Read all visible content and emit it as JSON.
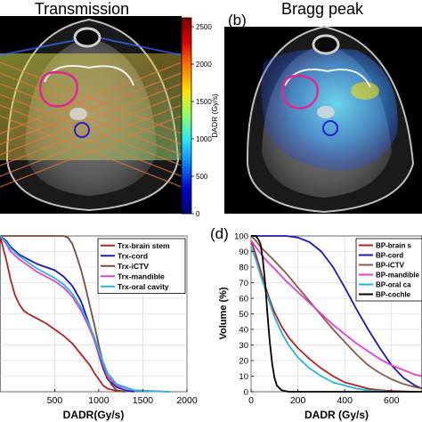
{
  "panels": {
    "a": {
      "title": "Transmission"
    },
    "b": {
      "title": "Bragg peak",
      "letter": "(b)"
    },
    "c": {},
    "d": {
      "letter": "(d)"
    }
  },
  "colorbar": {
    "label": "DADR (Gy/s)",
    "ticks": [
      "2500",
      "2000",
      "1500",
      "1000",
      "500",
      "0"
    ],
    "colors": [
      "#7a0000",
      "#e00000",
      "#ff7a00",
      "#ffe100",
      "#8cff6a",
      "#28e6ff",
      "#0a7cff",
      "#0000c8",
      "#00007a"
    ]
  },
  "chart_data": [
    {
      "type": "line",
      "panel": "c",
      "xlabel": "DADR(Gy/s)",
      "ylabel": "",
      "xlim": [
        -120,
        2000
      ],
      "ylim": [
        0,
        100
      ],
      "xticks": [
        500,
        1000,
        1500,
        2000
      ],
      "xtick_labels": [
        "500",
        "1000",
        "1500",
        "2000"
      ],
      "grid": true,
      "legend": "top-right",
      "series": [
        {
          "name": "Trx-brain stem",
          "color": "#b22222",
          "points": [
            [
              -120,
              100
            ],
            [
              -50,
              85
            ],
            [
              0,
              72
            ],
            [
              50,
              62
            ],
            [
              100,
              56
            ],
            [
              150,
              52
            ],
            [
              200,
              50
            ],
            [
              300,
              47
            ],
            [
              400,
              44
            ],
            [
              500,
              40
            ],
            [
              600,
              36
            ],
            [
              700,
              31
            ],
            [
              800,
              24
            ],
            [
              900,
              17
            ],
            [
              950,
              12
            ],
            [
              1000,
              8
            ],
            [
              1050,
              4
            ],
            [
              1100,
              2
            ],
            [
              1200,
              0.5
            ],
            [
              1300,
              0
            ]
          ]
        },
        {
          "name": "Trx-cord",
          "color": "#1a1ab4",
          "points": [
            [
              -120,
              100
            ],
            [
              -50,
              97
            ],
            [
              0,
              93
            ],
            [
              100,
              88
            ],
            [
              200,
              85
            ],
            [
              300,
              82
            ],
            [
              400,
              80
            ],
            [
              500,
              78
            ],
            [
              600,
              74
            ],
            [
              700,
              68
            ],
            [
              800,
              58
            ],
            [
              850,
              50
            ],
            [
              900,
              42
            ],
            [
              950,
              33
            ],
            [
              1000,
              24
            ],
            [
              1050,
              15
            ],
            [
              1100,
              8
            ],
            [
              1200,
              3
            ],
            [
              1300,
              1
            ],
            [
              1400,
              0
            ]
          ]
        },
        {
          "name": "Trx-iCTV",
          "color": "#7a4b3a",
          "points": [
            [
              -120,
              100
            ],
            [
              500,
              100
            ],
            [
              600,
              100
            ],
            [
              650,
              99
            ],
            [
              700,
              95
            ],
            [
              750,
              87
            ],
            [
              800,
              78
            ],
            [
              850,
              67
            ],
            [
              900,
              55
            ],
            [
              950,
              43
            ],
            [
              1000,
              30
            ],
            [
              1050,
              18
            ],
            [
              1100,
              9
            ],
            [
              1150,
              4
            ],
            [
              1200,
              1
            ],
            [
              1300,
              0
            ]
          ]
        },
        {
          "name": "Trx-mandible",
          "color": "#e040d0",
          "points": [
            [
              -120,
              100
            ],
            [
              -50,
              95
            ],
            [
              0,
              90
            ],
            [
              100,
              85
            ],
            [
              200,
              81
            ],
            [
              300,
              77
            ],
            [
              400,
              74
            ],
            [
              500,
              71
            ],
            [
              600,
              67
            ],
            [
              700,
              61
            ],
            [
              800,
              52
            ],
            [
              900,
              40
            ],
            [
              950,
              33
            ],
            [
              1000,
              25
            ],
            [
              1050,
              17
            ],
            [
              1100,
              10
            ],
            [
              1200,
              4
            ],
            [
              1400,
              1
            ],
            [
              1600,
              0.5
            ],
            [
              1800,
              0
            ]
          ]
        },
        {
          "name": "Trx-oral cavity",
          "color": "#22b8d8",
          "points": [
            [
              -120,
              100
            ],
            [
              -50,
              96
            ],
            [
              0,
              92
            ],
            [
              100,
              87
            ],
            [
              200,
              83
            ],
            [
              300,
              79
            ],
            [
              400,
              76
            ],
            [
              500,
              73
            ],
            [
              600,
              69
            ],
            [
              700,
              63
            ],
            [
              800,
              54
            ],
            [
              900,
              42
            ],
            [
              950,
              35
            ],
            [
              1000,
              27
            ],
            [
              1050,
              19
            ],
            [
              1100,
              12
            ],
            [
              1200,
              5
            ],
            [
              1400,
              1
            ],
            [
              1600,
              0.3
            ],
            [
              1800,
              0
            ]
          ]
        }
      ]
    },
    {
      "type": "line",
      "panel": "d",
      "xlabel": "DADR (Gy/s)",
      "ylabel": "Volume (%)",
      "xlim": [
        0,
        730
      ],
      "ylim": [
        0,
        100
      ],
      "xticks": [
        0,
        200,
        400,
        600
      ],
      "xtick_labels": [
        "0",
        "200",
        "400",
        "600"
      ],
      "yticks": [
        0,
        10,
        20,
        30,
        40,
        50,
        60,
        70,
        80,
        90,
        100
      ],
      "ytick_labels": [
        "0",
        "10",
        "20",
        "30",
        "40",
        "50",
        "60",
        "70",
        "80",
        "90",
        "100"
      ],
      "grid": true,
      "legend": "top-right",
      "series": [
        {
          "name": "BP-brain s",
          "color": "#b22222",
          "points": [
            [
              0,
              97
            ],
            [
              20,
              88
            ],
            [
              40,
              78
            ],
            [
              60,
              68
            ],
            [
              80,
              59
            ],
            [
              100,
              51
            ],
            [
              130,
              42
            ],
            [
              160,
              35
            ],
            [
              200,
              28
            ],
            [
              250,
              21
            ],
            [
              300,
              15
            ],
            [
              350,
              10
            ],
            [
              400,
              6
            ],
            [
              450,
              4
            ],
            [
              500,
              2
            ],
            [
              550,
              1
            ],
            [
              600,
              0.5
            ],
            [
              700,
              0
            ]
          ]
        },
        {
          "name": "BP-cord",
          "color": "#1a1ab4",
          "points": [
            [
              0,
              100
            ],
            [
              150,
              100
            ],
            [
              200,
              99
            ],
            [
              250,
              96
            ],
            [
              300,
              90
            ],
            [
              350,
              80
            ],
            [
              400,
              67
            ],
            [
              450,
              53
            ],
            [
              500,
              40
            ],
            [
              550,
              28
            ],
            [
              600,
              17
            ],
            [
              650,
              9
            ],
            [
              700,
              4
            ],
            [
              730,
              2
            ]
          ]
        },
        {
          "name": "BP-iCTV",
          "color": "#8a5a44",
          "points": [
            [
              0,
              100
            ],
            [
              20,
              97
            ],
            [
              40,
              93
            ],
            [
              60,
              90
            ],
            [
              100,
              84
            ],
            [
              150,
              76
            ],
            [
              200,
              67
            ],
            [
              250,
              58
            ],
            [
              300,
              49
            ],
            [
              350,
              40
            ],
            [
              400,
              32
            ],
            [
              450,
              24
            ],
            [
              500,
              17
            ],
            [
              550,
              12
            ],
            [
              600,
              8
            ],
            [
              650,
              5
            ],
            [
              700,
              3
            ],
            [
              730,
              2
            ]
          ]
        },
        {
          "name": "BP-mandible",
          "color": "#e040d0",
          "points": [
            [
              0,
              97
            ],
            [
              20,
              93
            ],
            [
              40,
              89
            ],
            [
              60,
              85
            ],
            [
              100,
              79
            ],
            [
              150,
              71
            ],
            [
              200,
              64
            ],
            [
              250,
              57
            ],
            [
              300,
              50
            ],
            [
              350,
              43
            ],
            [
              400,
              37
            ],
            [
              450,
              31
            ],
            [
              500,
              26
            ],
            [
              550,
              21
            ],
            [
              600,
              17
            ],
            [
              650,
              14
            ],
            [
              700,
              11
            ],
            [
              730,
              10
            ]
          ]
        },
        {
          "name": "BP-oral ca",
          "color": "#22b8d8",
          "points": [
            [
              0,
              93
            ],
            [
              20,
              85
            ],
            [
              40,
              75
            ],
            [
              60,
              66
            ],
            [
              80,
              57
            ],
            [
              100,
              48
            ],
            [
              130,
              38
            ],
            [
              160,
              30
            ],
            [
              200,
              22
            ],
            [
              250,
              15
            ],
            [
              300,
              10
            ],
            [
              350,
              6
            ],
            [
              400,
              4
            ],
            [
              450,
              2
            ],
            [
              500,
              1
            ],
            [
              600,
              0
            ]
          ]
        },
        {
          "name": "BP-cochle",
          "color": "#000000",
          "points": [
            [
              0,
              100
            ],
            [
              20,
              100
            ],
            [
              30,
              98
            ],
            [
              40,
              95
            ],
            [
              50,
              85
            ],
            [
              60,
              70
            ],
            [
              70,
              50
            ],
            [
              80,
              32
            ],
            [
              90,
              18
            ],
            [
              100,
              9
            ],
            [
              110,
              4
            ],
            [
              130,
              1
            ],
            [
              160,
              0
            ],
            [
              730,
              0
            ]
          ]
        }
      ]
    }
  ]
}
